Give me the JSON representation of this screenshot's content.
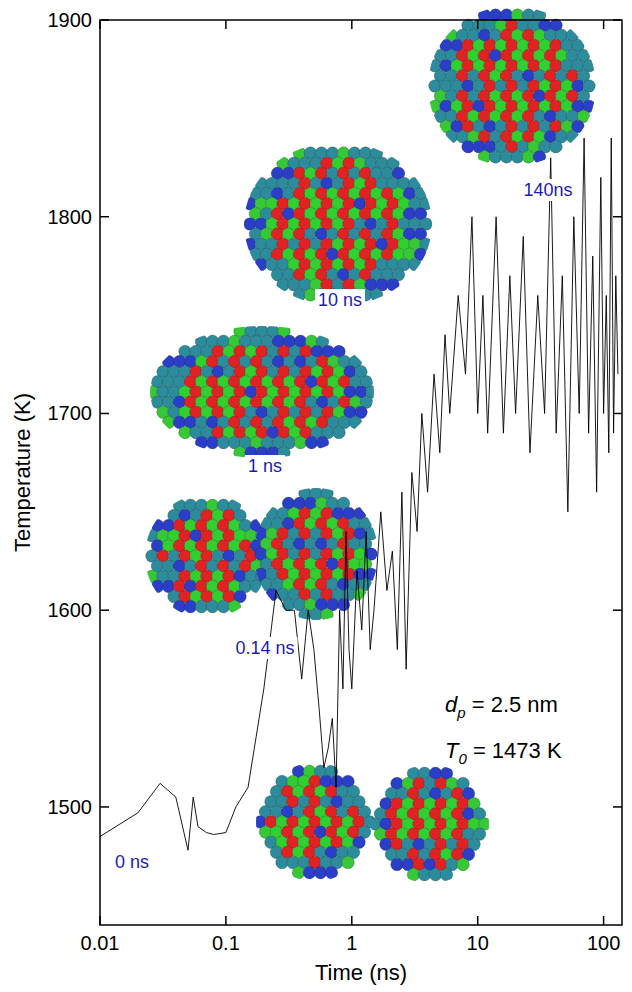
{
  "chart_data": {
    "type": "line",
    "x_label": "Time (ns)",
    "y_label": "Temperature (K)",
    "log": "x",
    "grid": false,
    "color": "#000000",
    "xlim": [
      0.01,
      140
    ],
    "ylim": [
      1440,
      1900
    ],
    "xticks": [
      0.01,
      0.1,
      1,
      10,
      100
    ],
    "yticks": [
      1500,
      1600,
      1700,
      1800,
      1900
    ],
    "x": [
      0.01,
      0.02,
      0.03,
      0.04,
      0.05,
      0.055,
      0.06,
      0.07,
      0.08,
      0.1,
      0.12,
      0.15,
      0.2,
      0.25,
      0.3,
      0.35,
      0.4,
      0.45,
      0.5,
      0.55,
      0.6,
      0.65,
      0.7,
      0.75,
      0.8,
      0.85,
      0.9,
      0.95,
      1.0,
      1.1,
      1.2,
      1.3,
      1.4,
      1.5,
      1.7,
      1.9,
      2.1,
      2.3,
      2.5,
      2.7,
      3,
      3.3,
      3.6,
      4,
      4.5,
      5,
      5.5,
      6,
      7,
      8,
      9,
      10,
      11,
      12,
      14,
      16,
      18,
      20,
      23,
      26,
      30,
      34,
      38,
      42,
      47,
      52,
      58,
      64,
      70,
      76,
      82,
      88,
      95,
      100,
      105,
      110,
      115,
      120,
      125,
      130
    ],
    "values": [
      1485,
      1497,
      1512,
      1505,
      1478,
      1505,
      1490,
      1487,
      1486,
      1487,
      1500,
      1510,
      1560,
      1610,
      1600,
      1600,
      1565,
      1600,
      1580,
      1550,
      1520,
      1530,
      1545,
      1510,
      1600,
      1560,
      1640,
      1580,
      1560,
      1620,
      1590,
      1640,
      1580,
      1600,
      1650,
      1610,
      1630,
      1580,
      1660,
      1570,
      1670,
      1640,
      1700,
      1660,
      1720,
      1680,
      1740,
      1700,
      1760,
      1720,
      1800,
      1700,
      1760,
      1690,
      1800,
      1690,
      1770,
      1700,
      1790,
      1680,
      1760,
      1700,
      1830,
      1690,
      1770,
      1650,
      1800,
      1700,
      1840,
      1690,
      1780,
      1660,
      1820,
      1700,
      1760,
      1680,
      1840,
      1690,
      1770,
      1720
    ],
    "snapshot_labels": [
      "0 ns",
      "0.14 ns",
      "1 ns",
      "10 ns",
      "140ns"
    ],
    "annotations": [
      {
        "symbol": "d",
        "subscript": "p",
        "text": " = 2.5 nm"
      },
      {
        "symbol": "T",
        "subscript": "0",
        "text": " = 1473 K"
      }
    ]
  }
}
